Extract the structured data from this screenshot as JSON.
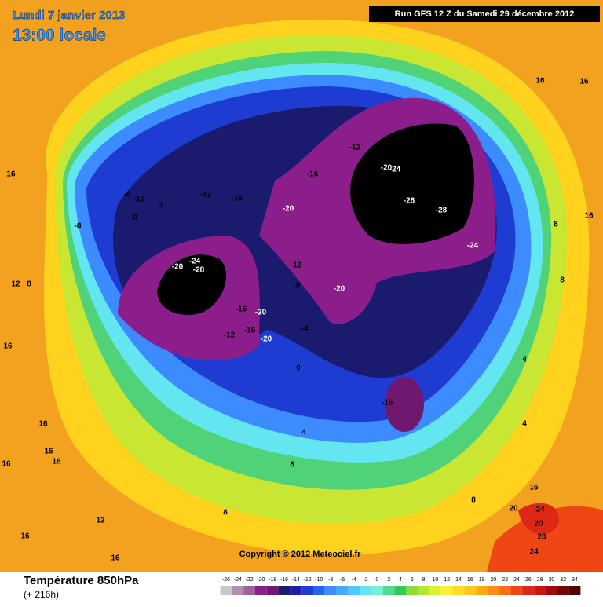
{
  "header": {
    "date": "Lundi 7 janvier 2013",
    "time": "13:00 locale",
    "run": "Run GFS 12 Z du Samedi 29 décembre 2012"
  },
  "footer": {
    "title": "Température 850hPa",
    "lead": "(+ 216h)",
    "copyright": "Copyright © 2012 Meteociel.fr"
  },
  "scale": {
    "ticks": [
      -26,
      -24,
      -22,
      -20,
      -18,
      -16,
      -14,
      -12,
      -10,
      -8,
      -6,
      -4,
      -2,
      0,
      2,
      4,
      6,
      8,
      10,
      12,
      14,
      16,
      18,
      20,
      22,
      24,
      26,
      28,
      30,
      32,
      34
    ],
    "colors": [
      "#c8c8c8",
      "#b090b0",
      "#a060a0",
      "#8c1e8c",
      "#701870",
      "#1a1a6e",
      "#1e1eaa",
      "#1e3cd2",
      "#2864f0",
      "#3c8cff",
      "#46aaff",
      "#50c8ff",
      "#64e6f0",
      "#78f0d2",
      "#50dc8c",
      "#32c85a",
      "#8cdc3c",
      "#b4e632",
      "#dcf032",
      "#fff032",
      "#ffdc28",
      "#ffc81e",
      "#ffaa14",
      "#ff8c14",
      "#ff6e14",
      "#f04614",
      "#dc2814",
      "#c81414",
      "#a00a0a",
      "#780505",
      "#500000"
    ]
  },
  "labels": [
    "16",
    "16",
    "12",
    "8",
    "16",
    "16",
    "16",
    "16",
    "16",
    "12",
    "16",
    "16",
    "8",
    "8",
    "4",
    "0",
    "-4",
    "-8",
    "-12",
    "-20",
    "-16",
    "4",
    "4",
    "8",
    "16",
    "20",
    "24",
    "20",
    "20",
    "24",
    "8",
    "8",
    "16",
    "16",
    "-24",
    "-28",
    "-28",
    "-24",
    "-20",
    "-16",
    "-12",
    "-16",
    "-20",
    "-16",
    "-12",
    "-12",
    "-8",
    "0",
    "0",
    "-8",
    "-24",
    "-20",
    "-28",
    "-16",
    "-20",
    "-16",
    "-20",
    "-12"
  ]
}
